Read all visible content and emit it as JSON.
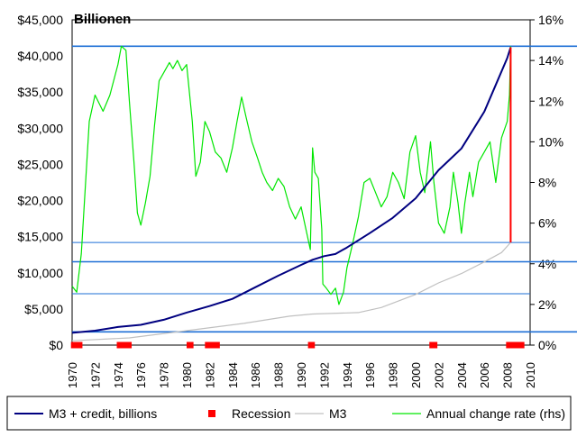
{
  "chart_data": {
    "type": "line",
    "title": "Billionen",
    "x": {
      "min": 1970,
      "max": 2010,
      "ticks": [
        "1970",
        "1972",
        "1974",
        "1976",
        "1978",
        "1980",
        "1982",
        "1984",
        "1986",
        "1988",
        "1990",
        "1992",
        "1994",
        "1996",
        "1998",
        "2000",
        "2002",
        "2004",
        "2006",
        "2008",
        "2010"
      ]
    },
    "y_left": {
      "min": 0,
      "max": 45000,
      "ticks": [
        "$0",
        "$5,000",
        "$10,000",
        "$15,000",
        "$20,000",
        "$25,000",
        "$30,000",
        "$35,000",
        "$40,000",
        "$45,000"
      ]
    },
    "y_right": {
      "min": 0,
      "max": 16,
      "ticks": [
        "0%",
        "2%",
        "4%",
        "6%",
        "8%",
        "10%",
        "12%",
        "14%",
        "16%"
      ]
    },
    "series": [
      {
        "name": "M3 + credit, billions",
        "axis": "left",
        "color": "#000080",
        "points": [
          [
            1970,
            1700
          ],
          [
            1972,
            2000
          ],
          [
            1974,
            2500
          ],
          [
            1976,
            2800
          ],
          [
            1978,
            3500
          ],
          [
            1980,
            4500
          ],
          [
            1982,
            5400
          ],
          [
            1984,
            6400
          ],
          [
            1986,
            8000
          ],
          [
            1988,
            9600
          ],
          [
            1990,
            11100
          ],
          [
            1991,
            11800
          ],
          [
            1992,
            12300
          ],
          [
            1993,
            12600
          ],
          [
            1994,
            13500
          ],
          [
            1996,
            15500
          ],
          [
            1998,
            17600
          ],
          [
            2000,
            20300
          ],
          [
            2002,
            24200
          ],
          [
            2004,
            27200
          ],
          [
            2006,
            32300
          ],
          [
            2007,
            36000
          ],
          [
            2008,
            39700
          ],
          [
            2008.3,
            41200
          ]
        ]
      },
      {
        "name": "M3",
        "axis": "left",
        "color": "#c0c0c0",
        "points": [
          [
            1970,
            600
          ],
          [
            1975,
            1000
          ],
          [
            1980,
            2000
          ],
          [
            1985,
            3000
          ],
          [
            1989,
            4000
          ],
          [
            1991,
            4300
          ],
          [
            1995,
            4500
          ],
          [
            1997,
            5200
          ],
          [
            2000,
            7000
          ],
          [
            2002,
            8600
          ],
          [
            2004,
            9900
          ],
          [
            2006,
            11500
          ],
          [
            2007.5,
            12800
          ],
          [
            2008.3,
            14200
          ]
        ]
      },
      {
        "name": "Annual change rate (rhs)",
        "axis": "right",
        "color": "#00e600",
        "points": [
          [
            1970,
            2.9
          ],
          [
            1970.4,
            2.6
          ],
          [
            1970.8,
            4.5
          ],
          [
            1971.5,
            11
          ],
          [
            1972,
            12.3
          ],
          [
            1972.7,
            11.5
          ],
          [
            1973.3,
            12.3
          ],
          [
            1974,
            13.8
          ],
          [
            1974.3,
            14.7
          ],
          [
            1974.7,
            14.5
          ],
          [
            1975,
            12
          ],
          [
            1975.4,
            9
          ],
          [
            1975.7,
            6.5
          ],
          [
            1976,
            5.9
          ],
          [
            1976.4,
            7
          ],
          [
            1976.8,
            8.3
          ],
          [
            1977.2,
            10.8
          ],
          [
            1977.6,
            13
          ],
          [
            1978,
            13.4
          ],
          [
            1978.5,
            13.9
          ],
          [
            1978.8,
            13.6
          ],
          [
            1979.2,
            14
          ],
          [
            1979.6,
            13.5
          ],
          [
            1980,
            13.8
          ],
          [
            1980.5,
            11
          ],
          [
            1980.8,
            8.3
          ],
          [
            1981.2,
            9
          ],
          [
            1981.6,
            11
          ],
          [
            1982,
            10.5
          ],
          [
            1982.5,
            9.5
          ],
          [
            1983,
            9.2
          ],
          [
            1983.5,
            8.5
          ],
          [
            1984,
            9.7
          ],
          [
            1984.4,
            11
          ],
          [
            1984.8,
            12.2
          ],
          [
            1985.2,
            11.2
          ],
          [
            1985.7,
            10
          ],
          [
            1986.2,
            9.2
          ],
          [
            1986.6,
            8.5
          ],
          [
            1987,
            8
          ],
          [
            1987.5,
            7.6
          ],
          [
            1988,
            8.2
          ],
          [
            1988.5,
            7.8
          ],
          [
            1989,
            6.8
          ],
          [
            1989.5,
            6.2
          ],
          [
            1990,
            6.8
          ],
          [
            1990.5,
            5.5
          ],
          [
            1990.8,
            4.7
          ],
          [
            1991,
            9.7
          ],
          [
            1991.2,
            8.5
          ],
          [
            1991.5,
            8.2
          ],
          [
            1991.8,
            5.7
          ],
          [
            1991.9,
            3
          ],
          [
            1992.2,
            2.8
          ],
          [
            1992.6,
            2.5
          ],
          [
            1993,
            2.8
          ],
          [
            1993.3,
            2
          ],
          [
            1993.7,
            2.6
          ],
          [
            1994,
            3.8
          ],
          [
            1994.5,
            5
          ],
          [
            1995,
            6.3
          ],
          [
            1995.5,
            8
          ],
          [
            1996,
            8.2
          ],
          [
            1996.5,
            7.5
          ],
          [
            1997,
            6.8
          ],
          [
            1997.5,
            7.3
          ],
          [
            1998,
            8.5
          ],
          [
            1998.5,
            8
          ],
          [
            1999,
            7.2
          ],
          [
            1999.5,
            9.5
          ],
          [
            2000,
            10.3
          ],
          [
            2000.4,
            8.5
          ],
          [
            2000.8,
            7.5
          ],
          [
            2001.3,
            10
          ],
          [
            2001.6,
            8
          ],
          [
            2002,
            6
          ],
          [
            2002.5,
            5.5
          ],
          [
            2003,
            6.8
          ],
          [
            2003.3,
            8.5
          ],
          [
            2003.7,
            7
          ],
          [
            2004,
            5.5
          ],
          [
            2004.3,
            7
          ],
          [
            2004.7,
            8.5
          ],
          [
            2005,
            7.3
          ],
          [
            2005.5,
            9
          ],
          [
            2006,
            9.5
          ],
          [
            2006.5,
            10
          ],
          [
            2007,
            8
          ],
          [
            2007.5,
            10.2
          ],
          [
            2008,
            11
          ],
          [
            2008.2,
            12.3
          ],
          [
            2008.3,
            14.7
          ]
        ]
      }
    ],
    "recessions": [
      [
        1969.9,
        1970.9
      ],
      [
        1973.9,
        1975.2
      ],
      [
        1980.0,
        1980.6
      ],
      [
        1981.6,
        1982.9
      ],
      [
        1990.6,
        1991.2
      ],
      [
        2001.2,
        2001.9
      ],
      [
        2007.9,
        2009.5
      ]
    ],
    "annotation": {
      "red_line": {
        "x": 2008.3,
        "from": 14200,
        "to": 41200,
        "color": "#ff0000"
      },
      "levels_left": [
        14200,
        7100
      ],
      "levels_right": [
        14.7,
        4.1,
        0.65
      ],
      "level_color": "#1e6fd6"
    },
    "legend": [
      {
        "label": "M3 + credit, billions",
        "marker": "line",
        "color": "#000080"
      },
      {
        "label": "Recession",
        "marker": "square",
        "color": "#ff0000"
      },
      {
        "label": "M3",
        "marker": "line",
        "color": "#c0c0c0"
      },
      {
        "label": "Annual change rate (rhs)",
        "marker": "line",
        "color": "#00e600"
      }
    ]
  }
}
